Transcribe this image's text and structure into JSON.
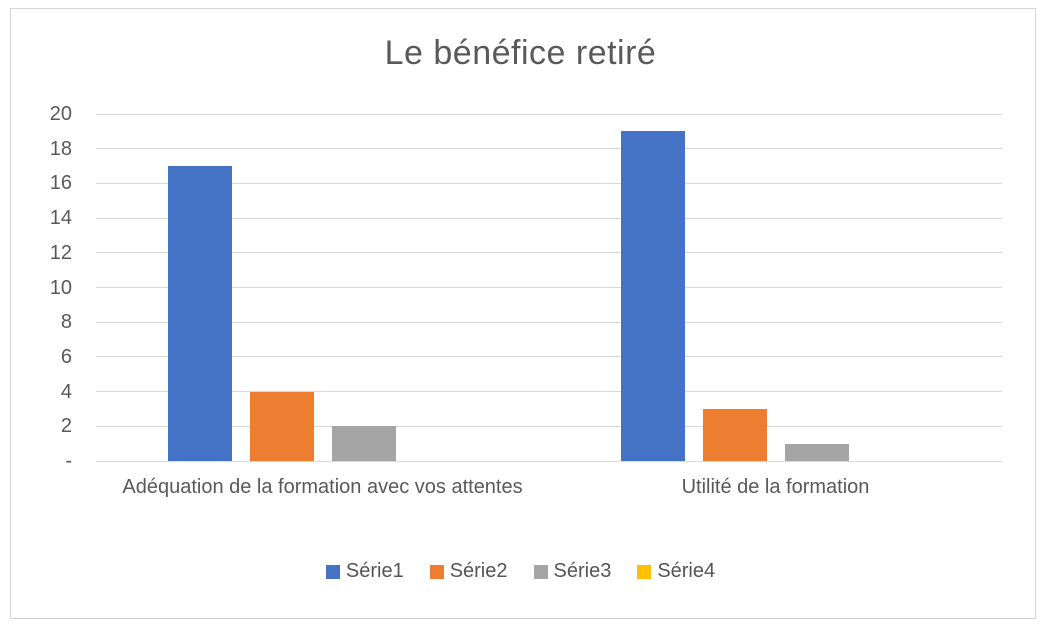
{
  "chart": {
    "title": "Le bénéfice retiré"
  },
  "chart_data": {
    "type": "bar",
    "title": "Le bénéfice retiré",
    "categories": [
      "Adéquation de la formation avec vos attentes",
      "Utilité de la formation"
    ],
    "series": [
      {
        "name": "Série1",
        "color": "#4472C4",
        "values": [
          17,
          19
        ]
      },
      {
        "name": "Série2",
        "color": "#ED7D31",
        "values": [
          4,
          3
        ]
      },
      {
        "name": "Série3",
        "color": "#A5A5A5",
        "values": [
          2,
          1
        ]
      },
      {
        "name": "Série4",
        "color": "#FFC000",
        "values": [
          0,
          0
        ]
      }
    ],
    "ylim": [
      0,
      20
    ],
    "ytick_step": 2,
    "ytick_labels": [
      "-",
      "2",
      "4",
      "6",
      "8",
      "10",
      "12",
      "14",
      "16",
      "18",
      "20"
    ],
    "grid": true,
    "legend_position": "bottom",
    "colors": {
      "gridline": "#D9D9D9",
      "text": "#595959",
      "frame_border": "#D6D6D6",
      "background": "#FFFFFF"
    }
  }
}
